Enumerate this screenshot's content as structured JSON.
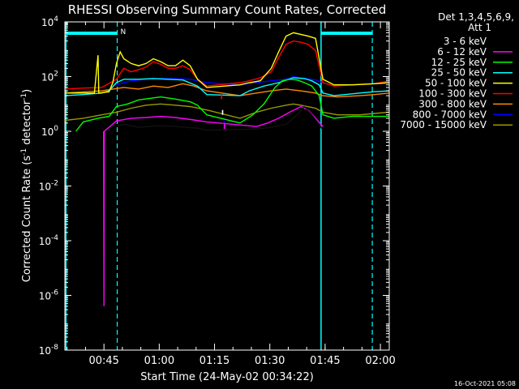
{
  "chart_data": {
    "type": "line",
    "title": "RHESSI Observing Summary Count Rates, Corrected",
    "xlabel": "Start Time (24-May-02 00:34:22)",
    "ylabel_main": "Corrected Count Rate (s",
    "ylabel_sup1": "-1",
    "ylabel_mid": " detector",
    "ylabel_sup2": "-1",
    "ylabel_end": ")",
    "y_scale": "log",
    "ylim": [
      1e-08,
      10000.0
    ],
    "xlim_minutes": [
      0,
      88
    ],
    "x_ticks": [
      {
        "label": "00:45",
        "minutes": 10.6
      },
      {
        "label": "01:00",
        "minutes": 25.6
      },
      {
        "label": "01:15",
        "minutes": 40.6
      },
      {
        "label": "01:30",
        "minutes": 55.6
      },
      {
        "label": "01:45",
        "minutes": 70.6
      },
      {
        "label": "02:00",
        "minutes": 85.6
      }
    ],
    "y_ticks": [
      {
        "mant": "10",
        "exp": "4",
        "value": 10000.0
      },
      {
        "mant": "10",
        "exp": "2",
        "value": 100.0
      },
      {
        "mant": "10",
        "exp": "0",
        "value": 1
      },
      {
        "mant": "10",
        "exp": "-2",
        "value": 0.01
      },
      {
        "mant": "10",
        "exp": "-4",
        "value": 0.0001
      },
      {
        "mant": "10",
        "exp": "-6",
        "value": 1e-06
      },
      {
        "mant": "10",
        "exp": "-8",
        "value": 1e-08
      }
    ],
    "legend_placement": "right",
    "legend_header1": "Det 1,3,4,5,6,9,",
    "legend_header2": "Att 1",
    "flags": {
      "night_label": "N",
      "solid_lines_minutes": [
        0.3,
        69.5
      ],
      "dashed_lines_minutes": [
        14.2,
        83.4
      ],
      "bars_minutes": [
        [
          0.3,
          14.2
        ],
        [
          69.5,
          83.4
        ]
      ]
    },
    "series": [
      {
        "name": "3 - 6 keV",
        "color": "#000000",
        "points": [
          [
            14,
            1.5
          ],
          [
            16,
            1.8
          ],
          [
            20,
            1.4
          ],
          [
            25,
            1.6
          ],
          [
            30,
            1.5
          ],
          [
            36,
            1.3
          ],
          [
            38.5,
            1.1
          ],
          [
            52,
            1.2
          ],
          [
            56,
            1.4
          ],
          [
            60,
            1.8
          ],
          [
            63,
            4
          ],
          [
            65,
            8
          ],
          [
            67,
            4
          ],
          [
            69,
            1.8
          ],
          [
            70,
            1.1
          ]
        ]
      },
      {
        "name": "6 - 12 keV",
        "color": "#ff00ff",
        "points": [
          [
            10.5,
            1
          ],
          [
            10.6,
            4e-07
          ],
          [
            10.7,
            1
          ],
          [
            14,
            2.4
          ],
          [
            18,
            3
          ],
          [
            22,
            3.2
          ],
          [
            26,
            3.5
          ],
          [
            30,
            3.2
          ],
          [
            35,
            2.6
          ],
          [
            38.5,
            2.2
          ],
          [
            52,
            1.5
          ],
          [
            55,
            2
          ],
          [
            58,
            3
          ],
          [
            61,
            5
          ],
          [
            64,
            8
          ],
          [
            66,
            6
          ],
          [
            68,
            3
          ],
          [
            70,
            1.5
          ]
        ]
      },
      {
        "name": "12 - 25 keV",
        "color": "#00ff00",
        "points": [
          [
            3,
            1
          ],
          [
            5,
            2.2
          ],
          [
            9,
            3
          ],
          [
            12,
            3.5
          ],
          [
            14,
            8
          ],
          [
            17,
            10
          ],
          [
            20,
            14
          ],
          [
            23,
            16
          ],
          [
            26,
            18
          ],
          [
            30,
            15
          ],
          [
            34,
            12
          ],
          [
            36,
            9
          ],
          [
            38.5,
            4
          ],
          [
            47.5,
            2
          ],
          [
            51,
            4
          ],
          [
            54,
            10
          ],
          [
            57,
            40
          ],
          [
            59,
            70
          ],
          [
            61,
            80
          ],
          [
            63,
            75
          ],
          [
            65,
            60
          ],
          [
            67,
            45
          ],
          [
            69,
            20
          ],
          [
            70,
            4
          ],
          [
            73,
            3
          ],
          [
            78,
            3.5
          ],
          [
            83,
            3.5
          ],
          [
            88,
            3.5
          ]
        ]
      },
      {
        "name": "25 - 50 keV",
        "color": "#00ffff",
        "points": [
          [
            0,
            20
          ],
          [
            5,
            22
          ],
          [
            10,
            25
          ],
          [
            12,
            30
          ],
          [
            14,
            60
          ],
          [
            16,
            80
          ],
          [
            20,
            80
          ],
          [
            24,
            85
          ],
          [
            28,
            80
          ],
          [
            32,
            75
          ],
          [
            36,
            45
          ],
          [
            38.5,
            22
          ],
          [
            47.5,
            20
          ],
          [
            50,
            30
          ],
          [
            54,
            45
          ],
          [
            58,
            60
          ],
          [
            62,
            90
          ],
          [
            65,
            85
          ],
          [
            67,
            70
          ],
          [
            69,
            50
          ],
          [
            70,
            25
          ],
          [
            73,
            20
          ],
          [
            76,
            22
          ],
          [
            80,
            25
          ],
          [
            84,
            28
          ],
          [
            88,
            30
          ]
        ]
      },
      {
        "name": "50 - 100 keV",
        "color": "#ffff00",
        "points": [
          [
            0,
            25
          ],
          [
            8,
            25
          ],
          [
            9,
            600
          ],
          [
            9.2,
            25
          ],
          [
            12,
            28
          ],
          [
            13,
            60
          ],
          [
            14,
            300
          ],
          [
            15,
            800
          ],
          [
            16,
            450
          ],
          [
            18,
            300
          ],
          [
            20,
            250
          ],
          [
            22,
            300
          ],
          [
            24,
            450
          ],
          [
            26,
            350
          ],
          [
            28,
            250
          ],
          [
            30,
            250
          ],
          [
            32,
            400
          ],
          [
            34,
            250
          ],
          [
            36,
            80
          ],
          [
            38.5,
            40
          ],
          [
            47.5,
            50
          ],
          [
            50,
            60
          ],
          [
            53,
            70
          ],
          [
            56,
            200
          ],
          [
            58,
            800
          ],
          [
            60,
            3000
          ],
          [
            62,
            4000
          ],
          [
            64,
            3500
          ],
          [
            66,
            3000
          ],
          [
            68,
            2500
          ],
          [
            70,
            80
          ],
          [
            73,
            50
          ],
          [
            78,
            50
          ],
          [
            84,
            55
          ],
          [
            88,
            60
          ]
        ]
      },
      {
        "name": "100 - 300 keV",
        "color": "#ff0000",
        "points": [
          [
            0,
            35
          ],
          [
            5,
            38
          ],
          [
            10,
            40
          ],
          [
            14,
            80
          ],
          [
            16,
            200
          ],
          [
            18,
            150
          ],
          [
            20,
            180
          ],
          [
            22,
            220
          ],
          [
            24,
            350
          ],
          [
            26,
            280
          ],
          [
            28,
            200
          ],
          [
            30,
            200
          ],
          [
            32,
            250
          ],
          [
            34,
            180
          ],
          [
            36,
            80
          ],
          [
            38.5,
            45
          ],
          [
            47.5,
            60
          ],
          [
            50,
            70
          ],
          [
            53,
            90
          ],
          [
            56,
            150
          ],
          [
            58,
            500
          ],
          [
            60,
            1500
          ],
          [
            62,
            2000
          ],
          [
            64,
            1800
          ],
          [
            66,
            1500
          ],
          [
            68,
            900
          ],
          [
            70,
            60
          ],
          [
            73,
            45
          ],
          [
            78,
            50
          ],
          [
            84,
            55
          ],
          [
            88,
            70
          ]
        ]
      },
      {
        "name": "300 - 800 keV",
        "color": "#ff8800",
        "points": [
          [
            0,
            25
          ],
          [
            10,
            30
          ],
          [
            13,
            35
          ],
          [
            16,
            40
          ],
          [
            20,
            35
          ],
          [
            24,
            45
          ],
          [
            28,
            40
          ],
          [
            32,
            55
          ],
          [
            35,
            45
          ],
          [
            38.5,
            30
          ],
          [
            47.5,
            20
          ],
          [
            52,
            25
          ],
          [
            56,
            30
          ],
          [
            60,
            35
          ],
          [
            64,
            30
          ],
          [
            68,
            25
          ],
          [
            70,
            20
          ],
          [
            74,
            18
          ],
          [
            80,
            20
          ],
          [
            84,
            22
          ],
          [
            88,
            25
          ]
        ]
      },
      {
        "name": "800 - 7000 keV",
        "color": "#0000ff",
        "points": [
          [
            14,
            50
          ],
          [
            18,
            70
          ],
          [
            22,
            80
          ],
          [
            26,
            85
          ],
          [
            30,
            85
          ],
          [
            34,
            80
          ],
          [
            38.5,
            60
          ],
          [
            47.5,
            50
          ],
          [
            52,
            60
          ],
          [
            56,
            70
          ],
          [
            60,
            80
          ],
          [
            62,
            100
          ],
          [
            64,
            90
          ],
          [
            68,
            75
          ],
          [
            70,
            60
          ]
        ]
      },
      {
        "name": "7000 - 15000 keV",
        "color": "#999900",
        "points": [
          [
            0,
            2.5
          ],
          [
            5,
            3
          ],
          [
            10,
            4
          ],
          [
            14,
            5
          ],
          [
            18,
            7
          ],
          [
            22,
            9
          ],
          [
            26,
            10
          ],
          [
            30,
            9
          ],
          [
            34,
            8
          ],
          [
            38.5,
            6
          ],
          [
            47.5,
            3
          ],
          [
            52,
            5
          ],
          [
            56,
            7
          ],
          [
            60,
            9
          ],
          [
            62,
            10
          ],
          [
            64,
            9
          ],
          [
            68,
            7
          ],
          [
            70,
            5
          ],
          [
            74,
            4
          ],
          [
            80,
            4
          ],
          [
            84,
            4.5
          ],
          [
            88,
            5
          ]
        ]
      }
    ],
    "isolated_segments": [
      {
        "color": "#ff0000",
        "points": [
          [
            42.5,
            15
          ],
          [
            42.5,
            25
          ]
        ]
      },
      {
        "color": "#ffffff",
        "points": [
          [
            42.8,
            4
          ],
          [
            42.8,
            6
          ]
        ]
      },
      {
        "color": "#0000ff",
        "points": [
          [
            43.2,
            1.2
          ],
          [
            43.2,
            2.5
          ]
        ]
      },
      {
        "color": "#ff00ff",
        "points": [
          [
            43.3,
            1.2
          ],
          [
            43.3,
            2
          ]
        ]
      }
    ]
  },
  "footer": {
    "timestamp": "16-Oct-2021 05:08"
  }
}
